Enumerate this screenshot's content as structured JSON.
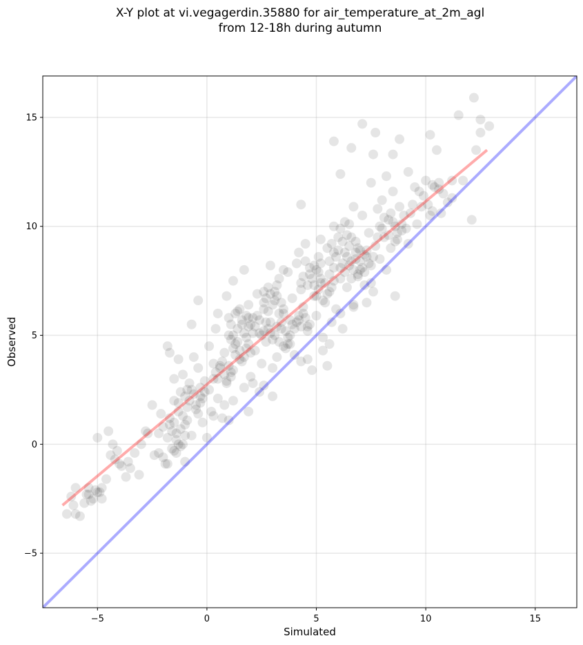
{
  "chart_data": {
    "type": "scatter",
    "title_line1": "X-Y plot at vi.vegagerdin.35880 for air_temperature_at_2m_agl",
    "title_line2": "from 12-18h during autumn",
    "xlabel": "Simulated",
    "ylabel": "Observed",
    "xlim": [
      -7.5,
      16.9
    ],
    "ylim": [
      -7.5,
      16.9
    ],
    "xticks": [
      -5,
      0,
      5,
      10,
      15
    ],
    "yticks": [
      -5,
      0,
      5,
      10,
      15
    ],
    "xtick_labels": [
      "−5",
      "0",
      "5",
      "10",
      "15"
    ],
    "ytick_labels": [
      "−5",
      "0",
      "5",
      "10",
      "15"
    ],
    "grid": true,
    "point_color": "#000000",
    "point_alpha": 0.1,
    "fit_line": {
      "color": "#ff0000",
      "x": [
        -6.6,
        12.8
      ],
      "y": [
        -2.8,
        13.5
      ]
    },
    "identity_line": {
      "color": "#0000ff",
      "x": [
        -7.5,
        16.9
      ],
      "y": [
        -7.5,
        16.9
      ]
    },
    "points": [
      [
        -6.4,
        -3.2
      ],
      [
        -6.1,
        -2.8
      ],
      [
        -6.0,
        -3.2
      ],
      [
        -5.8,
        -3.3
      ],
      [
        -5.6,
        -2.7
      ],
      [
        -5.5,
        -2.3
      ],
      [
        -5.4,
        -2.0
      ],
      [
        -5.2,
        -2.5
      ],
      [
        -5.0,
        -2.2
      ],
      [
        -4.9,
        -2.2
      ],
      [
        -4.8,
        -2.5
      ],
      [
        -4.6,
        -1.6
      ],
      [
        -5.0,
        0.3
      ],
      [
        -4.5,
        0.6
      ],
      [
        -4.4,
        -0.5
      ],
      [
        -4.2,
        -0.7
      ],
      [
        -4.0,
        -0.9
      ],
      [
        -3.7,
        -1.5
      ],
      [
        -3.5,
        -1.1
      ],
      [
        -3.1,
        -1.4
      ],
      [
        -3.3,
        -0.4
      ],
      [
        -3.0,
        0.0
      ],
      [
        -2.7,
        0.5
      ],
      [
        -2.4,
        -0.5
      ],
      [
        -2.2,
        -0.4
      ],
      [
        -2.0,
        0.8
      ],
      [
        -1.9,
        -0.9
      ],
      [
        -1.8,
        0.3
      ],
      [
        -1.7,
        1.2
      ],
      [
        -1.6,
        -0.2
      ],
      [
        -1.5,
        2.0
      ],
      [
        -1.4,
        0.5
      ],
      [
        -1.3,
        1.5
      ],
      [
        -1.2,
        2.4
      ],
      [
        -1.1,
        0.0
      ],
      [
        -1.0,
        -0.8
      ],
      [
        -1.8,
        4.5
      ],
      [
        -1.7,
        4.2
      ],
      [
        -1.5,
        3.0
      ],
      [
        -1.3,
        3.9
      ],
      [
        -1.1,
        3.2
      ],
      [
        -0.9,
        1.1
      ],
      [
        -0.8,
        2.8
      ],
      [
        -0.7,
        0.4
      ],
      [
        -0.6,
        4.0
      ],
      [
        -0.5,
        1.8
      ],
      [
        -0.4,
        3.5
      ],
      [
        -0.3,
        2.2
      ],
      [
        -0.2,
        1.0
      ],
      [
        -0.1,
        2.9
      ],
      [
        0.0,
        0.3
      ],
      [
        0.1,
        2.5
      ],
      [
        0.1,
        4.5
      ],
      [
        0.2,
        1.5
      ],
      [
        0.3,
        3.0
      ],
      [
        0.4,
        5.3
      ],
      [
        0.5,
        2.1
      ],
      [
        0.6,
        3.6
      ],
      [
        0.7,
        1.2
      ],
      [
        0.8,
        4.2
      ],
      [
        0.9,
        2.8
      ],
      [
        1.0,
        5.0
      ],
      [
        1.1,
        3.3
      ],
      [
        1.2,
        2.0
      ],
      [
        1.3,
        4.6
      ],
      [
        1.4,
        6.1
      ],
      [
        1.5,
        3.9
      ],
      [
        1.6,
        5.5
      ],
      [
        1.7,
        2.6
      ],
      [
        1.8,
        4.9
      ],
      [
        -0.4,
        6.6
      ],
      [
        -0.7,
        5.5
      ],
      [
        0.5,
        6.0
      ],
      [
        0.9,
        6.8
      ],
      [
        1.7,
        8.0
      ],
      [
        1.2,
        7.5
      ],
      [
        1.9,
        6.4
      ],
      [
        2.0,
        3.1
      ],
      [
        2.1,
        5.8
      ],
      [
        2.2,
        4.3
      ],
      [
        2.3,
        6.9
      ],
      [
        2.4,
        5.1
      ],
      [
        2.5,
        3.7
      ],
      [
        2.6,
        6.2
      ],
      [
        2.7,
        4.7
      ],
      [
        2.8,
        7.2
      ],
      [
        2.9,
        5.6
      ],
      [
        3.0,
        2.2
      ],
      [
        3.1,
        6.6
      ],
      [
        3.2,
        4.0
      ],
      [
        3.3,
        7.6
      ],
      [
        3.4,
        5.3
      ],
      [
        3.5,
        6.0
      ],
      [
        3.6,
        4.4
      ],
      [
        3.7,
        7.9
      ],
      [
        3.8,
        5.0
      ],
      [
        3.9,
        6.7
      ],
      [
        4.0,
        4.1
      ],
      [
        4.1,
        8.3
      ],
      [
        4.2,
        5.7
      ],
      [
        4.3,
        7.1
      ],
      [
        4.4,
        6.3
      ],
      [
        4.5,
        9.2
      ],
      [
        4.6,
        5.4
      ],
      [
        4.7,
        7.8
      ],
      [
        4.8,
        3.4
      ],
      [
        4.9,
        6.8
      ],
      [
        5.0,
        5.9
      ],
      [
        5.1,
        8.6
      ],
      [
        5.2,
        7.4
      ],
      [
        5.3,
        4.9
      ],
      [
        5.4,
        6.5
      ],
      [
        5.5,
        9.0
      ],
      [
        5.6,
        7.0
      ],
      [
        5.7,
        5.6
      ],
      [
        5.8,
        8.1
      ],
      [
        5.9,
        6.2
      ],
      [
        6.0,
        9.5
      ],
      [
        6.1,
        7.6
      ],
      [
        6.2,
        5.3
      ],
      [
        6.3,
        8.8
      ],
      [
        6.4,
        7.2
      ],
      [
        6.5,
        10.1
      ],
      [
        6.6,
        8.4
      ],
      [
        6.7,
        6.4
      ],
      [
        6.8,
        9.3
      ],
      [
        6.9,
        7.8
      ],
      [
        7.0,
        8.9
      ],
      [
        7.1,
        10.5
      ],
      [
        7.2,
        7.3
      ],
      [
        7.3,
        8.6
      ],
      [
        7.4,
        9.7
      ],
      [
        7.5,
        8.2
      ],
      [
        7.6,
        7.0
      ],
      [
        7.7,
        9.1
      ],
      [
        7.8,
        10.8
      ],
      [
        7.9,
        8.5
      ],
      [
        8.0,
        11.2
      ],
      [
        8.1,
        9.5
      ],
      [
        8.2,
        8.0
      ],
      [
        8.3,
        10.3
      ],
      [
        8.4,
        9.0
      ],
      [
        8.5,
        11.6
      ],
      [
        8.6,
        10.0
      ],
      [
        8.7,
        9.4
      ],
      [
        8.8,
        10.9
      ],
      [
        8.9,
        9.8
      ],
      [
        9.0,
        10.5
      ],
      [
        9.2,
        9.2
      ],
      [
        9.4,
        11.0
      ],
      [
        3.5,
        8.0
      ],
      [
        3.2,
        7.3
      ],
      [
        2.6,
        7.0
      ],
      [
        2.9,
        8.2
      ],
      [
        4.2,
        8.8
      ],
      [
        5.2,
        9.4
      ],
      [
        5.8,
        10.0
      ],
      [
        6.7,
        10.9
      ],
      [
        7.5,
        12.0
      ],
      [
        8.2,
        12.3
      ],
      [
        4.3,
        11.0
      ],
      [
        5.8,
        13.9
      ],
      [
        6.1,
        12.4
      ],
      [
        6.6,
        13.6
      ],
      [
        7.1,
        14.7
      ],
      [
        7.6,
        13.3
      ],
      [
        7.7,
        14.3
      ],
      [
        8.5,
        13.3
      ],
      [
        8.8,
        14.0
      ],
      [
        9.2,
        12.5
      ],
      [
        10.2,
        14.2
      ],
      [
        10.5,
        13.5
      ],
      [
        11.5,
        15.1
      ],
      [
        12.2,
        15.9
      ],
      [
        12.5,
        14.9
      ],
      [
        12.5,
        14.3
      ],
      [
        12.9,
        14.6
      ],
      [
        12.3,
        13.5
      ],
      [
        10.0,
        12.1
      ],
      [
        11.2,
        11.3
      ],
      [
        10.4,
        11.8
      ],
      [
        10.6,
        12.0
      ],
      [
        11.7,
        12.1
      ],
      [
        12.1,
        10.3
      ],
      [
        10.3,
        10.7
      ],
      [
        10.7,
        10.6
      ],
      [
        9.5,
        11.8
      ],
      [
        9.8,
        10.9
      ],
      [
        10.2,
        10.5
      ],
      [
        9.6,
        10.1
      ],
      [
        8.6,
        6.8
      ],
      [
        7.5,
        7.4
      ],
      [
        7.3,
        6.5
      ],
      [
        6.7,
        6.3
      ],
      [
        6.1,
        6.0
      ],
      [
        5.6,
        4.6
      ],
      [
        5.3,
        4.3
      ],
      [
        4.3,
        3.8
      ],
      [
        4.6,
        3.9
      ],
      [
        5.5,
        3.6
      ],
      [
        3.7,
        4.6
      ],
      [
        3.0,
        3.5
      ],
      [
        2.6,
        2.7
      ],
      [
        2.1,
        2.8
      ],
      [
        2.4,
        2.4
      ],
      [
        1.9,
        1.5
      ],
      [
        1.0,
        1.1
      ],
      [
        0.8,
        1.8
      ],
      [
        0.3,
        1.3
      ],
      [
        -0.3,
        1.9
      ],
      [
        -0.9,
        2.5
      ],
      [
        -1.3,
        1.9
      ],
      [
        -1.0,
        0.9
      ],
      [
        -2.1,
        1.4
      ],
      [
        -2.5,
        1.8
      ],
      [
        -2.2,
        0.5
      ],
      [
        -2.8,
        0.6
      ],
      [
        -1.4,
        -0.4
      ],
      [
        -2.0,
        -0.6
      ],
      [
        -1.8,
        -0.9
      ],
      [
        6.5,
        8.2
      ],
      [
        6.8,
        8.5
      ],
      [
        7.0,
        8.0
      ],
      [
        7.2,
        8.7
      ],
      [
        6.3,
        7.9
      ],
      [
        6.9,
        9.0
      ],
      [
        7.4,
        8.3
      ],
      [
        6.6,
        7.6
      ],
      [
        7.1,
        8.1
      ],
      [
        6.4,
        8.6
      ],
      [
        6.7,
        8.0
      ],
      [
        7.3,
        8.9
      ],
      [
        6.2,
        8.3
      ],
      [
        7.6,
        8.6
      ],
      [
        6.9,
        7.7
      ],
      [
        6.5,
        9.1
      ],
      [
        7.0,
        8.4
      ],
      [
        7.2,
        7.9
      ],
      [
        6.8,
        8.8
      ],
      [
        6.1,
        8.1
      ],
      [
        4.1,
        5.6
      ],
      [
        4.3,
        5.4
      ],
      [
        4.5,
        5.8
      ],
      [
        4.0,
        5.3
      ],
      [
        4.4,
        6.0
      ],
      [
        3.9,
        5.5
      ],
      [
        4.6,
        5.2
      ],
      [
        4.2,
        5.9
      ],
      [
        4.7,
        5.5
      ],
      [
        3.8,
        5.7
      ],
      [
        2.2,
        5.4
      ],
      [
        2.4,
        5.7
      ],
      [
        2.6,
        5.2
      ],
      [
        2.3,
        5.9
      ],
      [
        2.1,
        5.1
      ],
      [
        2.7,
        5.6
      ],
      [
        2.5,
        5.0
      ],
      [
        2.0,
        5.5
      ],
      [
        2.8,
        5.3
      ],
      [
        1.9,
        5.8
      ],
      [
        0.6,
        3.5
      ],
      [
        0.8,
        3.2
      ],
      [
        1.0,
        3.6
      ],
      [
        0.5,
        3.0
      ],
      [
        0.9,
        2.9
      ],
      [
        0.7,
        3.8
      ],
      [
        1.1,
        3.1
      ],
      [
        0.4,
        3.3
      ],
      [
        1.2,
        3.4
      ],
      [
        0.3,
        3.7
      ],
      [
        5.1,
        7.1
      ],
      [
        5.4,
        7.4
      ],
      [
        5.7,
        7.2
      ],
      [
        5.0,
        6.8
      ],
      [
        5.5,
        6.9
      ],
      [
        5.2,
        7.6
      ],
      [
        5.8,
        7.5
      ],
      [
        4.9,
        7.3
      ],
      [
        5.6,
        7.8
      ],
      [
        5.3,
        6.6
      ],
      [
        3.1,
        5.0
      ],
      [
        3.3,
        4.7
      ],
      [
        3.6,
        5.2
      ],
      [
        3.4,
        5.6
      ],
      [
        3.0,
        4.8
      ],
      [
        3.7,
        4.9
      ],
      [
        3.2,
        5.4
      ],
      [
        3.5,
        4.5
      ],
      [
        2.9,
        5.1
      ],
      [
        3.8,
        4.6
      ],
      [
        1.5,
        4.3
      ],
      [
        1.7,
        4.0
      ],
      [
        1.4,
        4.7
      ],
      [
        1.8,
        4.4
      ],
      [
        1.6,
        3.8
      ],
      [
        1.3,
        4.1
      ],
      [
        1.9,
        4.6
      ],
      [
        1.2,
        4.4
      ],
      [
        2.0,
        4.2
      ],
      [
        1.1,
        4.8
      ],
      [
        -0.8,
        2.0
      ],
      [
        -0.6,
        2.3
      ],
      [
        -0.5,
        1.6
      ],
      [
        -0.3,
        2.6
      ],
      [
        -0.9,
        1.7
      ],
      [
        -0.2,
        2.1
      ],
      [
        -0.7,
        2.5
      ],
      [
        -0.4,
        1.4
      ],
      [
        -1.0,
        2.2
      ],
      [
        -0.1,
        2.4
      ],
      [
        -1.5,
        1.0
      ],
      [
        -1.2,
        0.7
      ],
      [
        -1.4,
        0.2
      ],
      [
        -1.1,
        1.3
      ],
      [
        -1.6,
        0.6
      ],
      [
        -1.3,
        0.0
      ],
      [
        -1.0,
        0.4
      ],
      [
        -1.7,
        0.9
      ],
      [
        -1.5,
        -0.3
      ],
      [
        -1.2,
        -0.1
      ],
      [
        8.0,
        9.9
      ],
      [
        8.3,
        9.6
      ],
      [
        8.5,
        10.2
      ],
      [
        7.9,
        10.0
      ],
      [
        8.4,
        10.6
      ],
      [
        8.7,
        9.7
      ],
      [
        8.1,
        10.4
      ],
      [
        8.6,
        9.3
      ],
      [
        7.8,
        9.5
      ],
      [
        8.9,
        10.1
      ],
      [
        6.0,
        8.9
      ],
      [
        6.2,
        9.3
      ],
      [
        5.9,
        8.6
      ],
      [
        6.4,
        9.6
      ],
      [
        6.1,
        9.9
      ],
      [
        5.7,
        9.2
      ],
      [
        6.6,
        9.5
      ],
      [
        5.8,
        8.8
      ],
      [
        6.3,
        10.2
      ],
      [
        5.6,
        8.4
      ],
      [
        4.8,
        7.6
      ],
      [
        5.0,
        8.0
      ],
      [
        4.6,
        7.3
      ],
      [
        5.2,
        8.3
      ],
      [
        4.7,
        8.1
      ],
      [
        4.4,
        7.7
      ],
      [
        5.1,
        7.9
      ],
      [
        4.5,
        8.4
      ],
      [
        4.9,
        8.2
      ],
      [
        4.3,
        7.4
      ],
      [
        3.0,
        6.4
      ],
      [
        3.2,
        6.8
      ],
      [
        2.8,
        6.1
      ],
      [
        3.4,
        6.5
      ],
      [
        3.1,
        7.0
      ],
      [
        2.7,
        6.7
      ],
      [
        3.5,
        6.2
      ],
      [
        2.9,
        6.9
      ],
      [
        3.3,
        6.0
      ],
      [
        2.6,
        6.5
      ],
      [
        1.4,
        5.3
      ],
      [
        1.6,
        5.7
      ],
      [
        1.2,
        5.0
      ],
      [
        1.8,
        5.9
      ],
      [
        1.5,
        6.2
      ],
      [
        1.1,
        5.5
      ],
      [
        1.7,
        5.1
      ],
      [
        1.3,
        6.0
      ],
      [
        1.9,
        5.4
      ],
      [
        1.0,
        5.8
      ],
      [
        -3.6,
        -0.8
      ],
      [
        -3.9,
        -1.0
      ],
      [
        -4.3,
        0.0
      ],
      [
        -4.1,
        -0.3
      ],
      [
        -5.4,
        -2.3
      ],
      [
        -5.1,
        -2.1
      ],
      [
        -4.8,
        -2.0
      ],
      [
        -5.3,
        -2.6
      ],
      [
        -6.2,
        -2.4
      ],
      [
        -6.0,
        -2.0
      ],
      [
        9.9,
        11.4
      ],
      [
        10.1,
        11.0
      ],
      [
        9.7,
        11.6
      ],
      [
        10.3,
        11.9
      ],
      [
        10.8,
        11.5
      ],
      [
        11.0,
        11.1
      ],
      [
        10.6,
        11.7
      ],
      [
        11.2,
        12.1
      ],
      [
        9.3,
        10.6
      ],
      [
        9.1,
        9.9
      ]
    ]
  }
}
